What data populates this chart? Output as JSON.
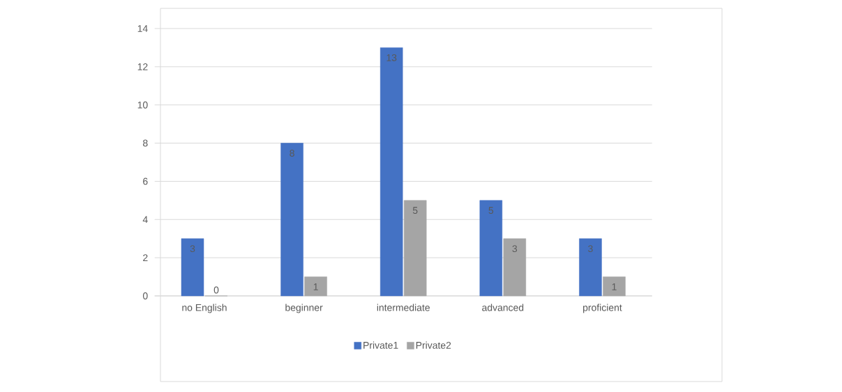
{
  "chart_data": {
    "type": "bar",
    "categories": [
      "no English",
      "beginner",
      "intermediate",
      "advanced",
      "proficient"
    ],
    "series": [
      {
        "name": "Private1",
        "color": "#4472c4",
        "values": [
          3,
          8,
          13,
          5,
          3
        ]
      },
      {
        "name": "Private2",
        "color": "#a5a5a5",
        "values": [
          0,
          1,
          5,
          3,
          1
        ]
      }
    ],
    "ylim": [
      0,
      14
    ],
    "yticks": [
      0,
      2,
      4,
      6,
      8,
      10,
      12,
      14
    ],
    "grid": "y",
    "legend": "bottom",
    "data_labels": true
  }
}
